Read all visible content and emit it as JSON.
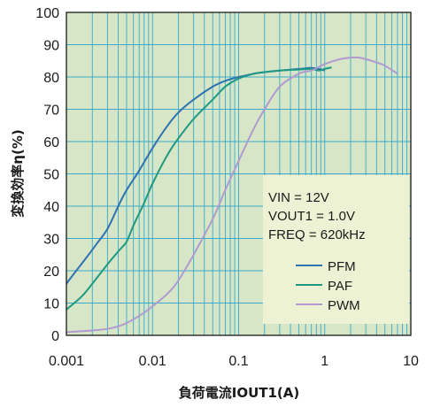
{
  "chart_data": {
    "type": "line",
    "xlabel": "負荷電流IOUT1(A)",
    "ylabel": "変換効率η(%)",
    "xscale": "log",
    "xlim": [
      0.001,
      10
    ],
    "ylim": [
      0,
      100
    ],
    "x_ticks": [
      "0.001",
      "0.01",
      "0.1",
      "1",
      "10"
    ],
    "y_ticks": [
      "0",
      "10",
      "20",
      "30",
      "40",
      "50",
      "60",
      "70",
      "80",
      "90",
      "100"
    ],
    "grid": true,
    "plot_background": "#d6e6c6",
    "grid_color": "#3aa9cc",
    "annotation_box_color": "#eef2d4",
    "conditions": [
      "VIN = 12V",
      "VOUT1 = 1.0V",
      "FREQ = 620kHz"
    ],
    "legend_position": "lower-right",
    "series": [
      {
        "name": "PFM",
        "color": "#2e72b0",
        "x": [
          0.001,
          0.0013,
          0.0017,
          0.0022,
          0.003,
          0.004,
          0.005,
          0.007,
          0.01,
          0.015,
          0.02,
          0.03,
          0.05,
          0.07,
          0.1,
          0.15,
          0.2,
          0.3,
          0.5,
          0.7,
          0.85,
          1.0
        ],
        "y": [
          16,
          20,
          24,
          28,
          33,
          40,
          45,
          51,
          58,
          65,
          69,
          73,
          77,
          78.8,
          80,
          81,
          81.5,
          82,
          82.5,
          82.8,
          82.5,
          82
        ]
      },
      {
        "name": "PAF",
        "color": "#1e9a82",
        "x": [
          0.001,
          0.0015,
          0.002,
          0.003,
          0.004,
          0.005,
          0.006,
          0.008,
          0.01,
          0.015,
          0.02,
          0.03,
          0.05,
          0.07,
          0.1,
          0.15,
          0.2,
          0.3,
          0.5,
          0.7,
          0.85,
          1.0,
          1.2
        ],
        "y": [
          8,
          12,
          16,
          22,
          26,
          29,
          34,
          41,
          47,
          56,
          61,
          67,
          73,
          77,
          79.5,
          81,
          81.5,
          82,
          82.3,
          82.5,
          82,
          82.5,
          83
        ]
      },
      {
        "name": "PWM",
        "color": "#b09ad0",
        "x": [
          0.001,
          0.002,
          0.003,
          0.004,
          0.005,
          0.007,
          0.01,
          0.015,
          0.02,
          0.03,
          0.05,
          0.07,
          0.1,
          0.15,
          0.2,
          0.3,
          0.5,
          0.7,
          1.0,
          1.5,
          2.0,
          2.5,
          3.0,
          4.0,
          5.0,
          7.0
        ],
        "y": [
          1,
          1.5,
          2,
          2.8,
          3.8,
          6,
          9,
          13,
          17,
          25,
          36,
          45,
          54,
          64,
          70,
          77,
          81,
          82,
          84,
          85.5,
          86,
          86,
          85.5,
          84.5,
          83.5,
          81
        ]
      }
    ]
  }
}
